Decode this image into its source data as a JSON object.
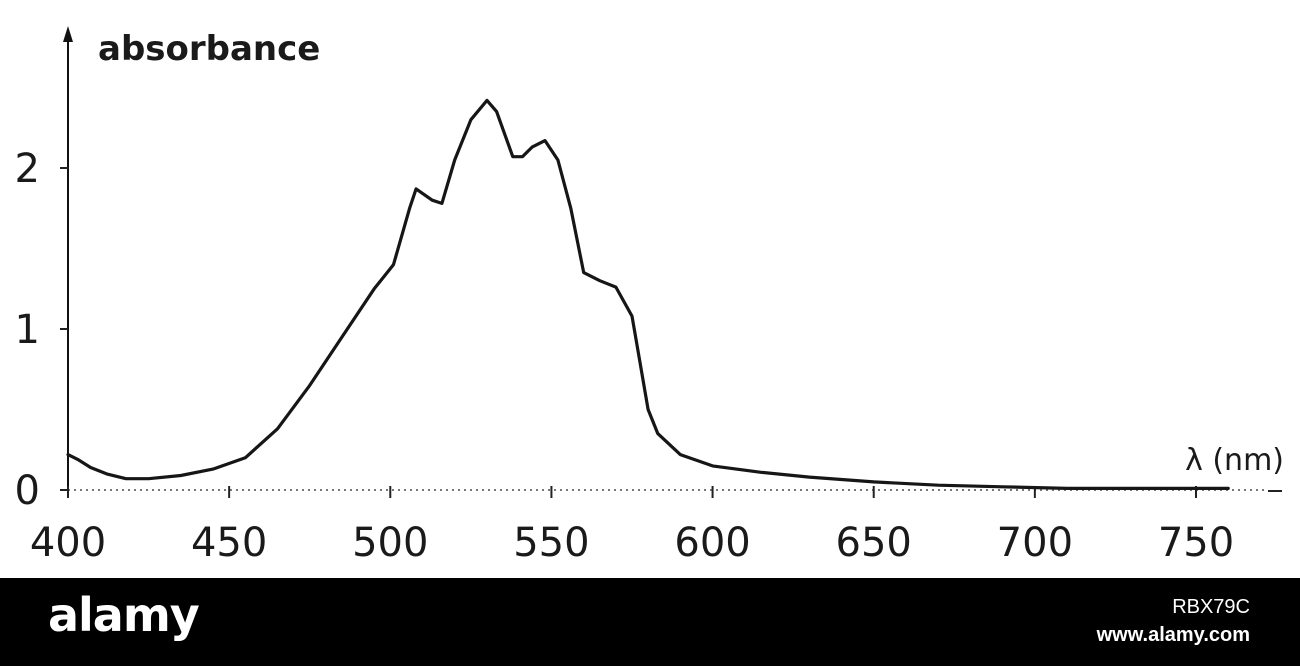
{
  "chart_data": {
    "type": "line",
    "title": "",
    "ylabel": "absorbance",
    "xlabel": "λ (nm)",
    "xlim": [
      400,
      770
    ],
    "ylim": [
      0,
      2.5
    ],
    "x_ticks": [
      "400",
      "450",
      "500",
      "550",
      "600",
      "650",
      "700",
      "750"
    ],
    "y_ticks": [
      "0",
      "1",
      "2"
    ],
    "grid": false,
    "series": [
      {
        "x": [
          400,
          403,
          407,
          412,
          418,
          425,
          435,
          445,
          455,
          465,
          475,
          485,
          495,
          501,
          506,
          508,
          513,
          516,
          520,
          525,
          530,
          533,
          538,
          541,
          544,
          548,
          552,
          556,
          560,
          565,
          570,
          575,
          577,
          580,
          583,
          590,
          600,
          615,
          630,
          650,
          670,
          690,
          710,
          730,
          750,
          760
        ],
        "y": [
          0.22,
          0.19,
          0.14,
          0.1,
          0.07,
          0.07,
          0.09,
          0.13,
          0.2,
          0.38,
          0.65,
          0.95,
          1.25,
          1.4,
          1.75,
          1.87,
          1.8,
          1.78,
          2.05,
          2.3,
          2.42,
          2.35,
          2.07,
          2.07,
          2.13,
          2.17,
          2.05,
          1.75,
          1.35,
          1.3,
          1.26,
          1.08,
          0.85,
          0.5,
          0.35,
          0.22,
          0.15,
          0.11,
          0.08,
          0.05,
          0.03,
          0.02,
          0.01,
          0.01,
          0.01,
          0.01
        ]
      }
    ]
  },
  "watermark": {
    "logo": "alamy",
    "image_id": "RBX79C",
    "url": "www.alamy.com"
  }
}
